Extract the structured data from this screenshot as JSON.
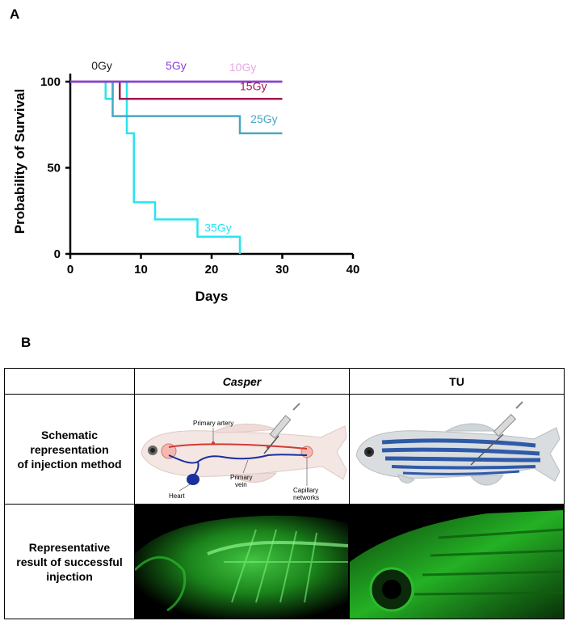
{
  "panel_a": {
    "label": "A"
  },
  "panel_b": {
    "label": "B"
  },
  "chart_data": {
    "type": "line",
    "step": true,
    "xlabel": "Days",
    "ylabel": "Probability of Survival",
    "xlim": [
      0,
      40
    ],
    "ylim": [
      0,
      100
    ],
    "xticks": [
      "0",
      "10",
      "20",
      "30",
      "40"
    ],
    "yticks": [
      "0",
      "50",
      "100"
    ],
    "grid": false,
    "series": [
      {
        "name": "0Gy",
        "color": "#222222",
        "x": [
          0,
          30
        ],
        "y": [
          100,
          100
        ]
      },
      {
        "name": "5Gy",
        "color": "#8a3fe0",
        "x": [
          0,
          30
        ],
        "y": [
          100,
          100
        ]
      },
      {
        "name": "10Gy",
        "color": "#e8a8e4",
        "x": [
          0,
          30
        ],
        "y": [
          100,
          100
        ]
      },
      {
        "name": "15Gy",
        "color": "#a3184f",
        "x": [
          0,
          7,
          7,
          30
        ],
        "y": [
          100,
          100,
          90,
          90
        ]
      },
      {
        "name": "25Gy",
        "color": "#4aa6c4",
        "x": [
          0,
          6,
          6,
          24,
          24,
          30
        ],
        "y": [
          100,
          100,
          80,
          80,
          70,
          70
        ]
      },
      {
        "name": "35Gy",
        "color": "#29e3ef",
        "x": [
          0,
          5,
          5,
          6,
          6,
          8,
          8,
          9,
          9,
          12,
          12,
          18,
          18,
          24,
          24
        ],
        "y": [
          100,
          100,
          90,
          90,
          100,
          100,
          70,
          70,
          30,
          30,
          20,
          20,
          10,
          10,
          0
        ]
      }
    ]
  },
  "table": {
    "col_headers": [
      "",
      "Casper",
      "TU"
    ],
    "rows": [
      {
        "label": [
          "Schematic",
          "representation",
          "of injection method"
        ]
      },
      {
        "label": [
          "Representative",
          "result of successful",
          "injection"
        ]
      }
    ],
    "schematic_labels": {
      "primary_artery": "Primary artery",
      "heart": "Heart",
      "primary_vein_1": "Primary",
      "primary_vein_2": "vein",
      "capillary_1": "Capillary",
      "capillary_2": "networks"
    }
  }
}
